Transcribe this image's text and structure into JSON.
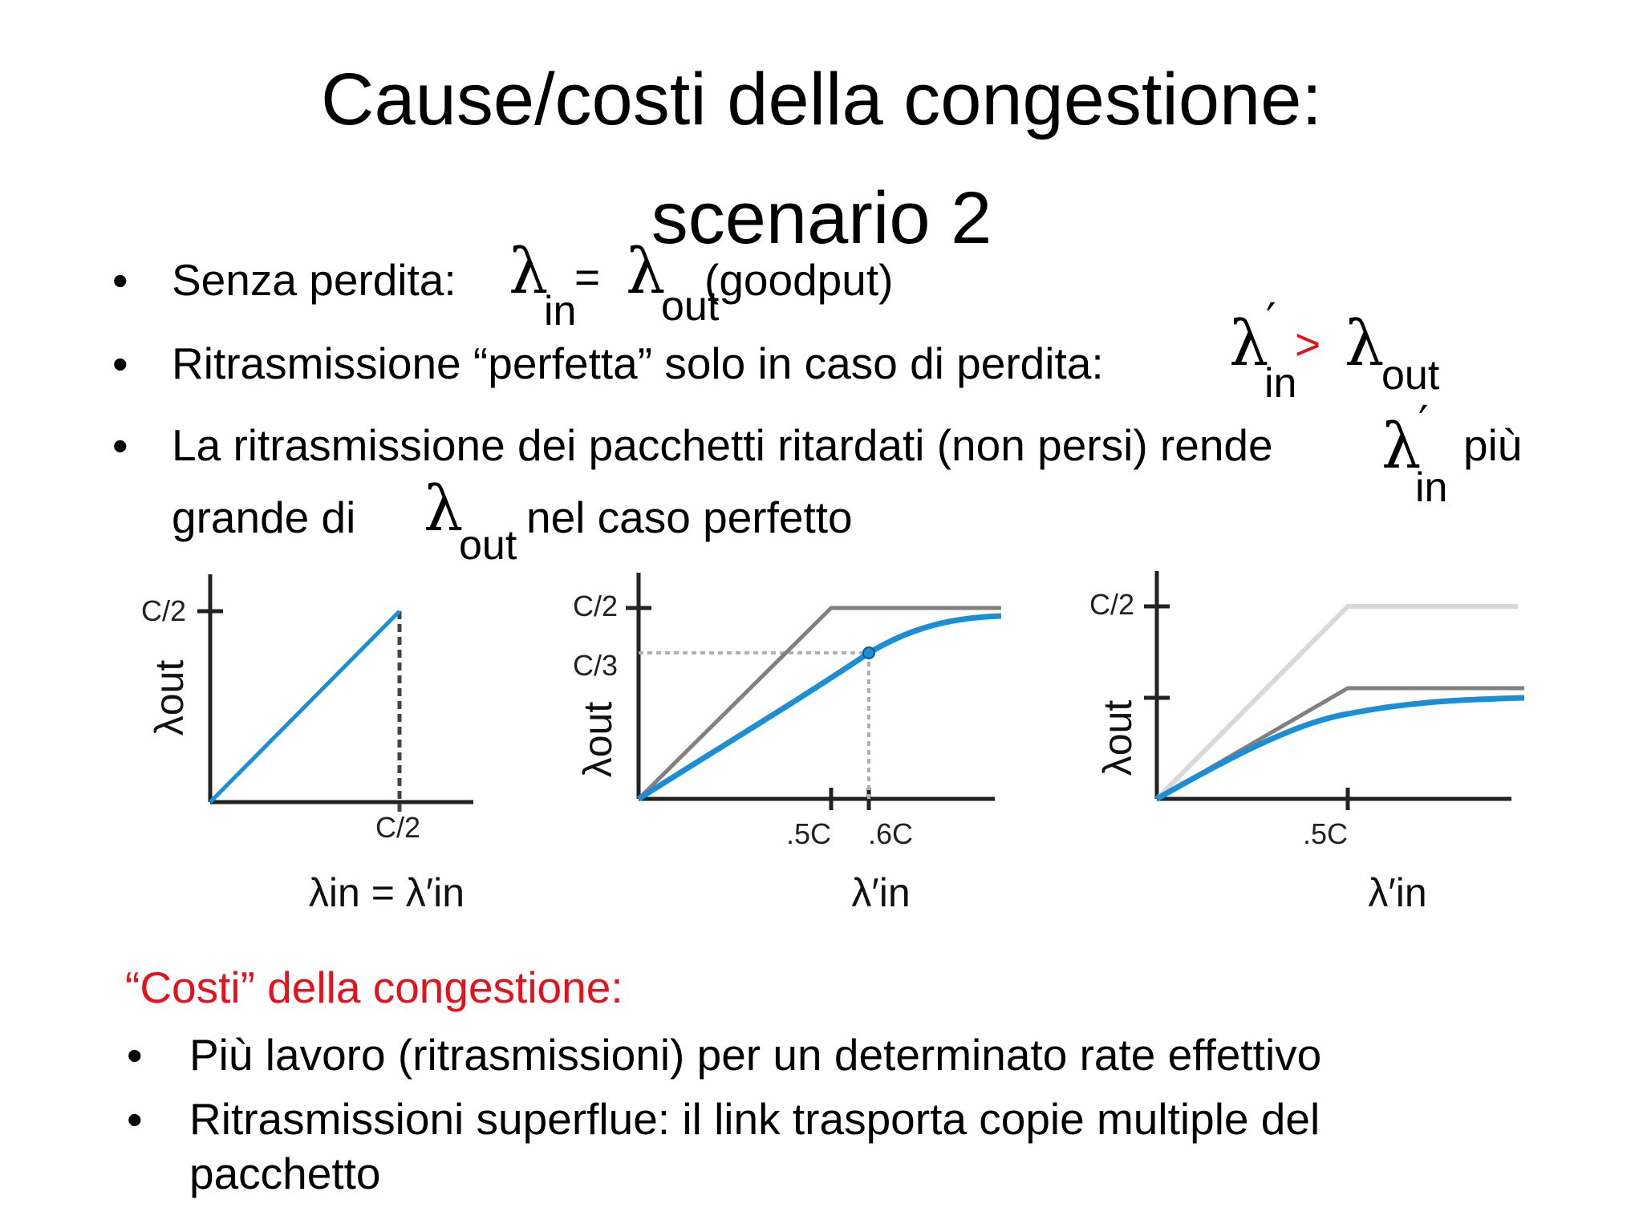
{
  "slide": {
    "title_line1": "Cause/costi della congestione:",
    "title_line2": "scenario 2"
  },
  "bullets": {
    "b1": {
      "text": "Senza perdita:",
      "lambda": "λ",
      "sub_in": "in",
      "equals": "=",
      "sub_out": "out",
      "note": "(goodput)"
    },
    "b2": {
      "text": "Ritrasmissione “perfetta” solo in caso di perdita:",
      "lambda": "λ",
      "prime": "′",
      "sub_in": "in",
      "gt": ">",
      "sub_out": "out"
    },
    "b3": {
      "line1": "La ritrasmissione dei pacchetti ritardati (non persi) rende",
      "sub_in": "in",
      "tail": "più",
      "line2_start": "grande di",
      "sub_out": "out",
      "line2_end": "nel caso perfetto"
    }
  },
  "graphs": {
    "g1": {
      "y_tick": "C/2",
      "y_label": "λout",
      "x_tick": "C/2",
      "x_label": "λin = λ′in"
    },
    "g2": {
      "y_tick_top": "C/2",
      "y_tick_mid": "C/3",
      "y_label": "λout",
      "x_tick_a": ".5C",
      "x_tick_b": ".6C",
      "x_label": "λ′in"
    },
    "g3": {
      "y_tick_top": "C/2",
      "y_label": "λout",
      "x_tick": ".5C",
      "x_label": "λ′in"
    }
  },
  "costs": {
    "heading": "“Costi” della congestione:",
    "items": [
      "Più lavoro (ritrasmissioni) per un determinato rate effettivo",
      "Ritrasmissioni superflue: il link trasporta copie multiple  del",
      "pacchetto"
    ]
  },
  "colors": {
    "curve_blue": "#1a8fd8",
    "red": "#e8101a",
    "grey": "#808080",
    "light_grey": "#d9d9d9"
  }
}
